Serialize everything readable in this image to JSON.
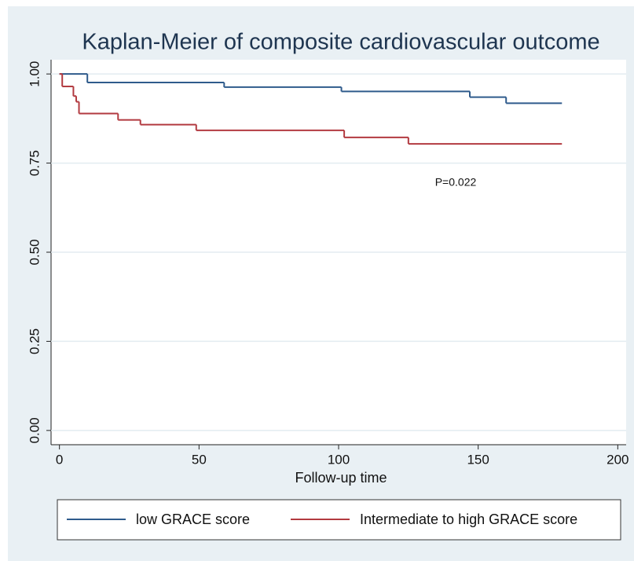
{
  "chart_data": {
    "type": "step",
    "title": "Kaplan-Meier of composite cardiovascular outcome",
    "x_label": "Follow-up time",
    "annotation": "P=0.022",
    "xlim": [
      -3,
      203
    ],
    "xticks": [
      0,
      50,
      100,
      150,
      200
    ],
    "ylim": [
      -0.04,
      1.04
    ],
    "yticks": [
      {
        "value": 0,
        "label": "0.00"
      },
      {
        "value": 0.25,
        "label": "0.25"
      },
      {
        "value": 0.5,
        "label": "0.50"
      },
      {
        "value": 0.75,
        "label": "0.75"
      },
      {
        "value": 1,
        "label": "1.00"
      }
    ],
    "grid": true,
    "series": [
      {
        "name": "low GRACE score",
        "color": "#2f5b8c",
        "x": [
          0,
          10,
          59,
          101,
          147,
          160,
          180
        ],
        "values": [
          1.0,
          0.976,
          0.963,
          0.951,
          0.935,
          0.918,
          0.918
        ]
      },
      {
        "name": "Intermediate to high GRACE score",
        "color": "#b23a40",
        "x": [
          0,
          1,
          5,
          6,
          7,
          21,
          29,
          49,
          102,
          125,
          180
        ],
        "values": [
          1.0,
          0.965,
          0.938,
          0.922,
          0.889,
          0.871,
          0.858,
          0.842,
          0.822,
          0.804,
          0.804
        ]
      }
    ]
  }
}
